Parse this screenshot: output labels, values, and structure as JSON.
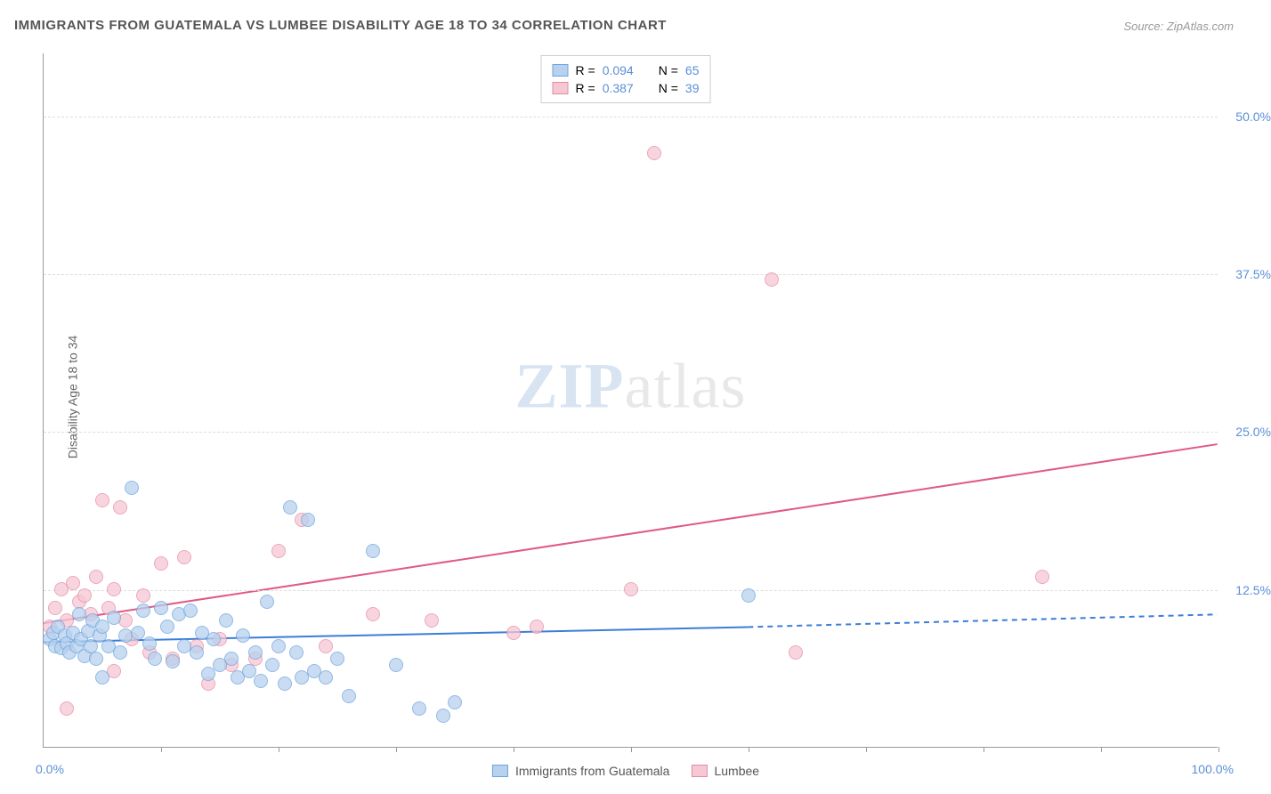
{
  "chart": {
    "type": "scatter-correlation",
    "title": "IMMIGRANTS FROM GUATEMALA VS LUMBEE DISABILITY AGE 18 TO 34 CORRELATION CHART",
    "source_label": "Source: ZipAtlas.com",
    "watermark": {
      "zip": "ZIP",
      "atlas": "atlas"
    },
    "y_axis_title": "Disability Age 18 to 34",
    "xlim": [
      0,
      100
    ],
    "ylim": [
      0,
      55
    ],
    "y_ticks": [
      {
        "v": 12.5,
        "label": "12.5%"
      },
      {
        "v": 25.0,
        "label": "25.0%"
      },
      {
        "v": 37.5,
        "label": "37.5%"
      },
      {
        "v": 50.0,
        "label": "50.0%"
      }
    ],
    "x_ticks": [
      10,
      20,
      30,
      40,
      50,
      60,
      70,
      80,
      90,
      100
    ],
    "x_origin_label": "0.0%",
    "x_max_label": "100.0%",
    "colors": {
      "series_a_fill": "#b7d1ee",
      "series_a_stroke": "#6da4de",
      "series_b_fill": "#f6c8d4",
      "series_b_stroke": "#e68aa5",
      "reg_line_a": "#3b7dd8",
      "reg_line_b": "#e05a84",
      "grid": "#dddddd",
      "axis": "#999999",
      "tick_text": "#5b8fd6",
      "background": "#ffffff"
    },
    "legend_top": [
      {
        "series": "a",
        "r_label": "R =",
        "r_value": "0.094",
        "n_label": "N =",
        "n_value": "65"
      },
      {
        "series": "b",
        "r_label": "R =",
        "r_value": "0.387",
        "n_label": "N =",
        "n_value": "39"
      }
    ],
    "legend_bottom": [
      {
        "series": "a",
        "label": "Immigrants from Guatemala"
      },
      {
        "series": "b",
        "label": "Lumbee"
      }
    ],
    "regression_lines": {
      "a": {
        "x1": 0,
        "y1": 8.3,
        "x2_solid": 60,
        "y2_solid": 9.5,
        "x2": 100,
        "y2": 10.5
      },
      "b": {
        "x1": 0,
        "y1": 9.8,
        "x2": 100,
        "y2": 24.0
      }
    },
    "points_a": [
      {
        "x": 0.5,
        "y": 8.5
      },
      {
        "x": 0.8,
        "y": 9.0
      },
      {
        "x": 1.0,
        "y": 8.0
      },
      {
        "x": 1.2,
        "y": 9.5
      },
      {
        "x": 1.5,
        "y": 7.8
      },
      {
        "x": 1.8,
        "y": 8.8
      },
      {
        "x": 2.0,
        "y": 8.2
      },
      {
        "x": 2.2,
        "y": 7.5
      },
      {
        "x": 2.5,
        "y": 9.0
      },
      {
        "x": 2.8,
        "y": 8.0
      },
      {
        "x": 3.0,
        "y": 10.5
      },
      {
        "x": 3.2,
        "y": 8.5
      },
      {
        "x": 3.5,
        "y": 7.2
      },
      {
        "x": 3.8,
        "y": 9.2
      },
      {
        "x": 4.0,
        "y": 8.0
      },
      {
        "x": 4.2,
        "y": 10.0
      },
      {
        "x": 4.5,
        "y": 7.0
      },
      {
        "x": 4.8,
        "y": 8.8
      },
      {
        "x": 5.0,
        "y": 9.5
      },
      {
        "x": 5.5,
        "y": 8.0
      },
      {
        "x": 6.0,
        "y": 10.2
      },
      {
        "x": 6.5,
        "y": 7.5
      },
      {
        "x": 7.0,
        "y": 8.8
      },
      {
        "x": 7.5,
        "y": 20.5
      },
      {
        "x": 8.0,
        "y": 9.0
      },
      {
        "x": 8.5,
        "y": 10.8
      },
      {
        "x": 9.0,
        "y": 8.2
      },
      {
        "x": 9.5,
        "y": 7.0
      },
      {
        "x": 10.0,
        "y": 11.0
      },
      {
        "x": 10.5,
        "y": 9.5
      },
      {
        "x": 11.0,
        "y": 6.8
      },
      {
        "x": 11.5,
        "y": 10.5
      },
      {
        "x": 12.0,
        "y": 8.0
      },
      {
        "x": 12.5,
        "y": 10.8
      },
      {
        "x": 13.0,
        "y": 7.5
      },
      {
        "x": 13.5,
        "y": 9.0
      },
      {
        "x": 14.0,
        "y": 5.8
      },
      {
        "x": 14.5,
        "y": 8.5
      },
      {
        "x": 15.0,
        "y": 6.5
      },
      {
        "x": 15.5,
        "y": 10.0
      },
      {
        "x": 16.0,
        "y": 7.0
      },
      {
        "x": 16.5,
        "y": 5.5
      },
      {
        "x": 17.0,
        "y": 8.8
      },
      {
        "x": 17.5,
        "y": 6.0
      },
      {
        "x": 18.0,
        "y": 7.5
      },
      {
        "x": 18.5,
        "y": 5.2
      },
      {
        "x": 19.0,
        "y": 11.5
      },
      {
        "x": 19.5,
        "y": 6.5
      },
      {
        "x": 20.0,
        "y": 8.0
      },
      {
        "x": 20.5,
        "y": 5.0
      },
      {
        "x": 21.0,
        "y": 19.0
      },
      {
        "x": 21.5,
        "y": 7.5
      },
      {
        "x": 22.0,
        "y": 5.5
      },
      {
        "x": 22.5,
        "y": 18.0
      },
      {
        "x": 23.0,
        "y": 6.0
      },
      {
        "x": 24.0,
        "y": 5.5
      },
      {
        "x": 25.0,
        "y": 7.0
      },
      {
        "x": 26.0,
        "y": 4.0
      },
      {
        "x": 28.0,
        "y": 15.5
      },
      {
        "x": 30.0,
        "y": 6.5
      },
      {
        "x": 32.0,
        "y": 3.0
      },
      {
        "x": 34.0,
        "y": 2.5
      },
      {
        "x": 35.0,
        "y": 3.5
      },
      {
        "x": 60.0,
        "y": 12.0
      },
      {
        "x": 5.0,
        "y": 5.5
      }
    ],
    "points_b": [
      {
        "x": 0.5,
        "y": 9.5
      },
      {
        "x": 1.0,
        "y": 11.0
      },
      {
        "x": 1.5,
        "y": 12.5
      },
      {
        "x": 2.0,
        "y": 10.0
      },
      {
        "x": 2.5,
        "y": 13.0
      },
      {
        "x": 3.0,
        "y": 11.5
      },
      {
        "x": 3.5,
        "y": 12.0
      },
      {
        "x": 4.0,
        "y": 10.5
      },
      {
        "x": 4.5,
        "y": 13.5
      },
      {
        "x": 5.0,
        "y": 19.5
      },
      {
        "x": 5.5,
        "y": 11.0
      },
      {
        "x": 6.0,
        "y": 12.5
      },
      {
        "x": 6.5,
        "y": 19.0
      },
      {
        "x": 7.0,
        "y": 10.0
      },
      {
        "x": 7.5,
        "y": 8.5
      },
      {
        "x": 8.5,
        "y": 12.0
      },
      {
        "x": 9.0,
        "y": 7.5
      },
      {
        "x": 10.0,
        "y": 14.5
      },
      {
        "x": 11.0,
        "y": 7.0
      },
      {
        "x": 12.0,
        "y": 15.0
      },
      {
        "x": 13.0,
        "y": 8.0
      },
      {
        "x": 14.0,
        "y": 5.0
      },
      {
        "x": 15.0,
        "y": 8.5
      },
      {
        "x": 16.0,
        "y": 6.5
      },
      {
        "x": 18.0,
        "y": 7.0
      },
      {
        "x": 20.0,
        "y": 15.5
      },
      {
        "x": 22.0,
        "y": 18.0
      },
      {
        "x": 24.0,
        "y": 8.0
      },
      {
        "x": 28.0,
        "y": 10.5
      },
      {
        "x": 33.0,
        "y": 10.0
      },
      {
        "x": 40.0,
        "y": 9.0
      },
      {
        "x": 42.0,
        "y": 9.5
      },
      {
        "x": 50.0,
        "y": 12.5
      },
      {
        "x": 52.0,
        "y": 47.0
      },
      {
        "x": 62.0,
        "y": 37.0
      },
      {
        "x": 64.0,
        "y": 7.5
      },
      {
        "x": 85.0,
        "y": 13.5
      },
      {
        "x": 2.0,
        "y": 3.0
      },
      {
        "x": 6.0,
        "y": 6.0
      }
    ]
  }
}
